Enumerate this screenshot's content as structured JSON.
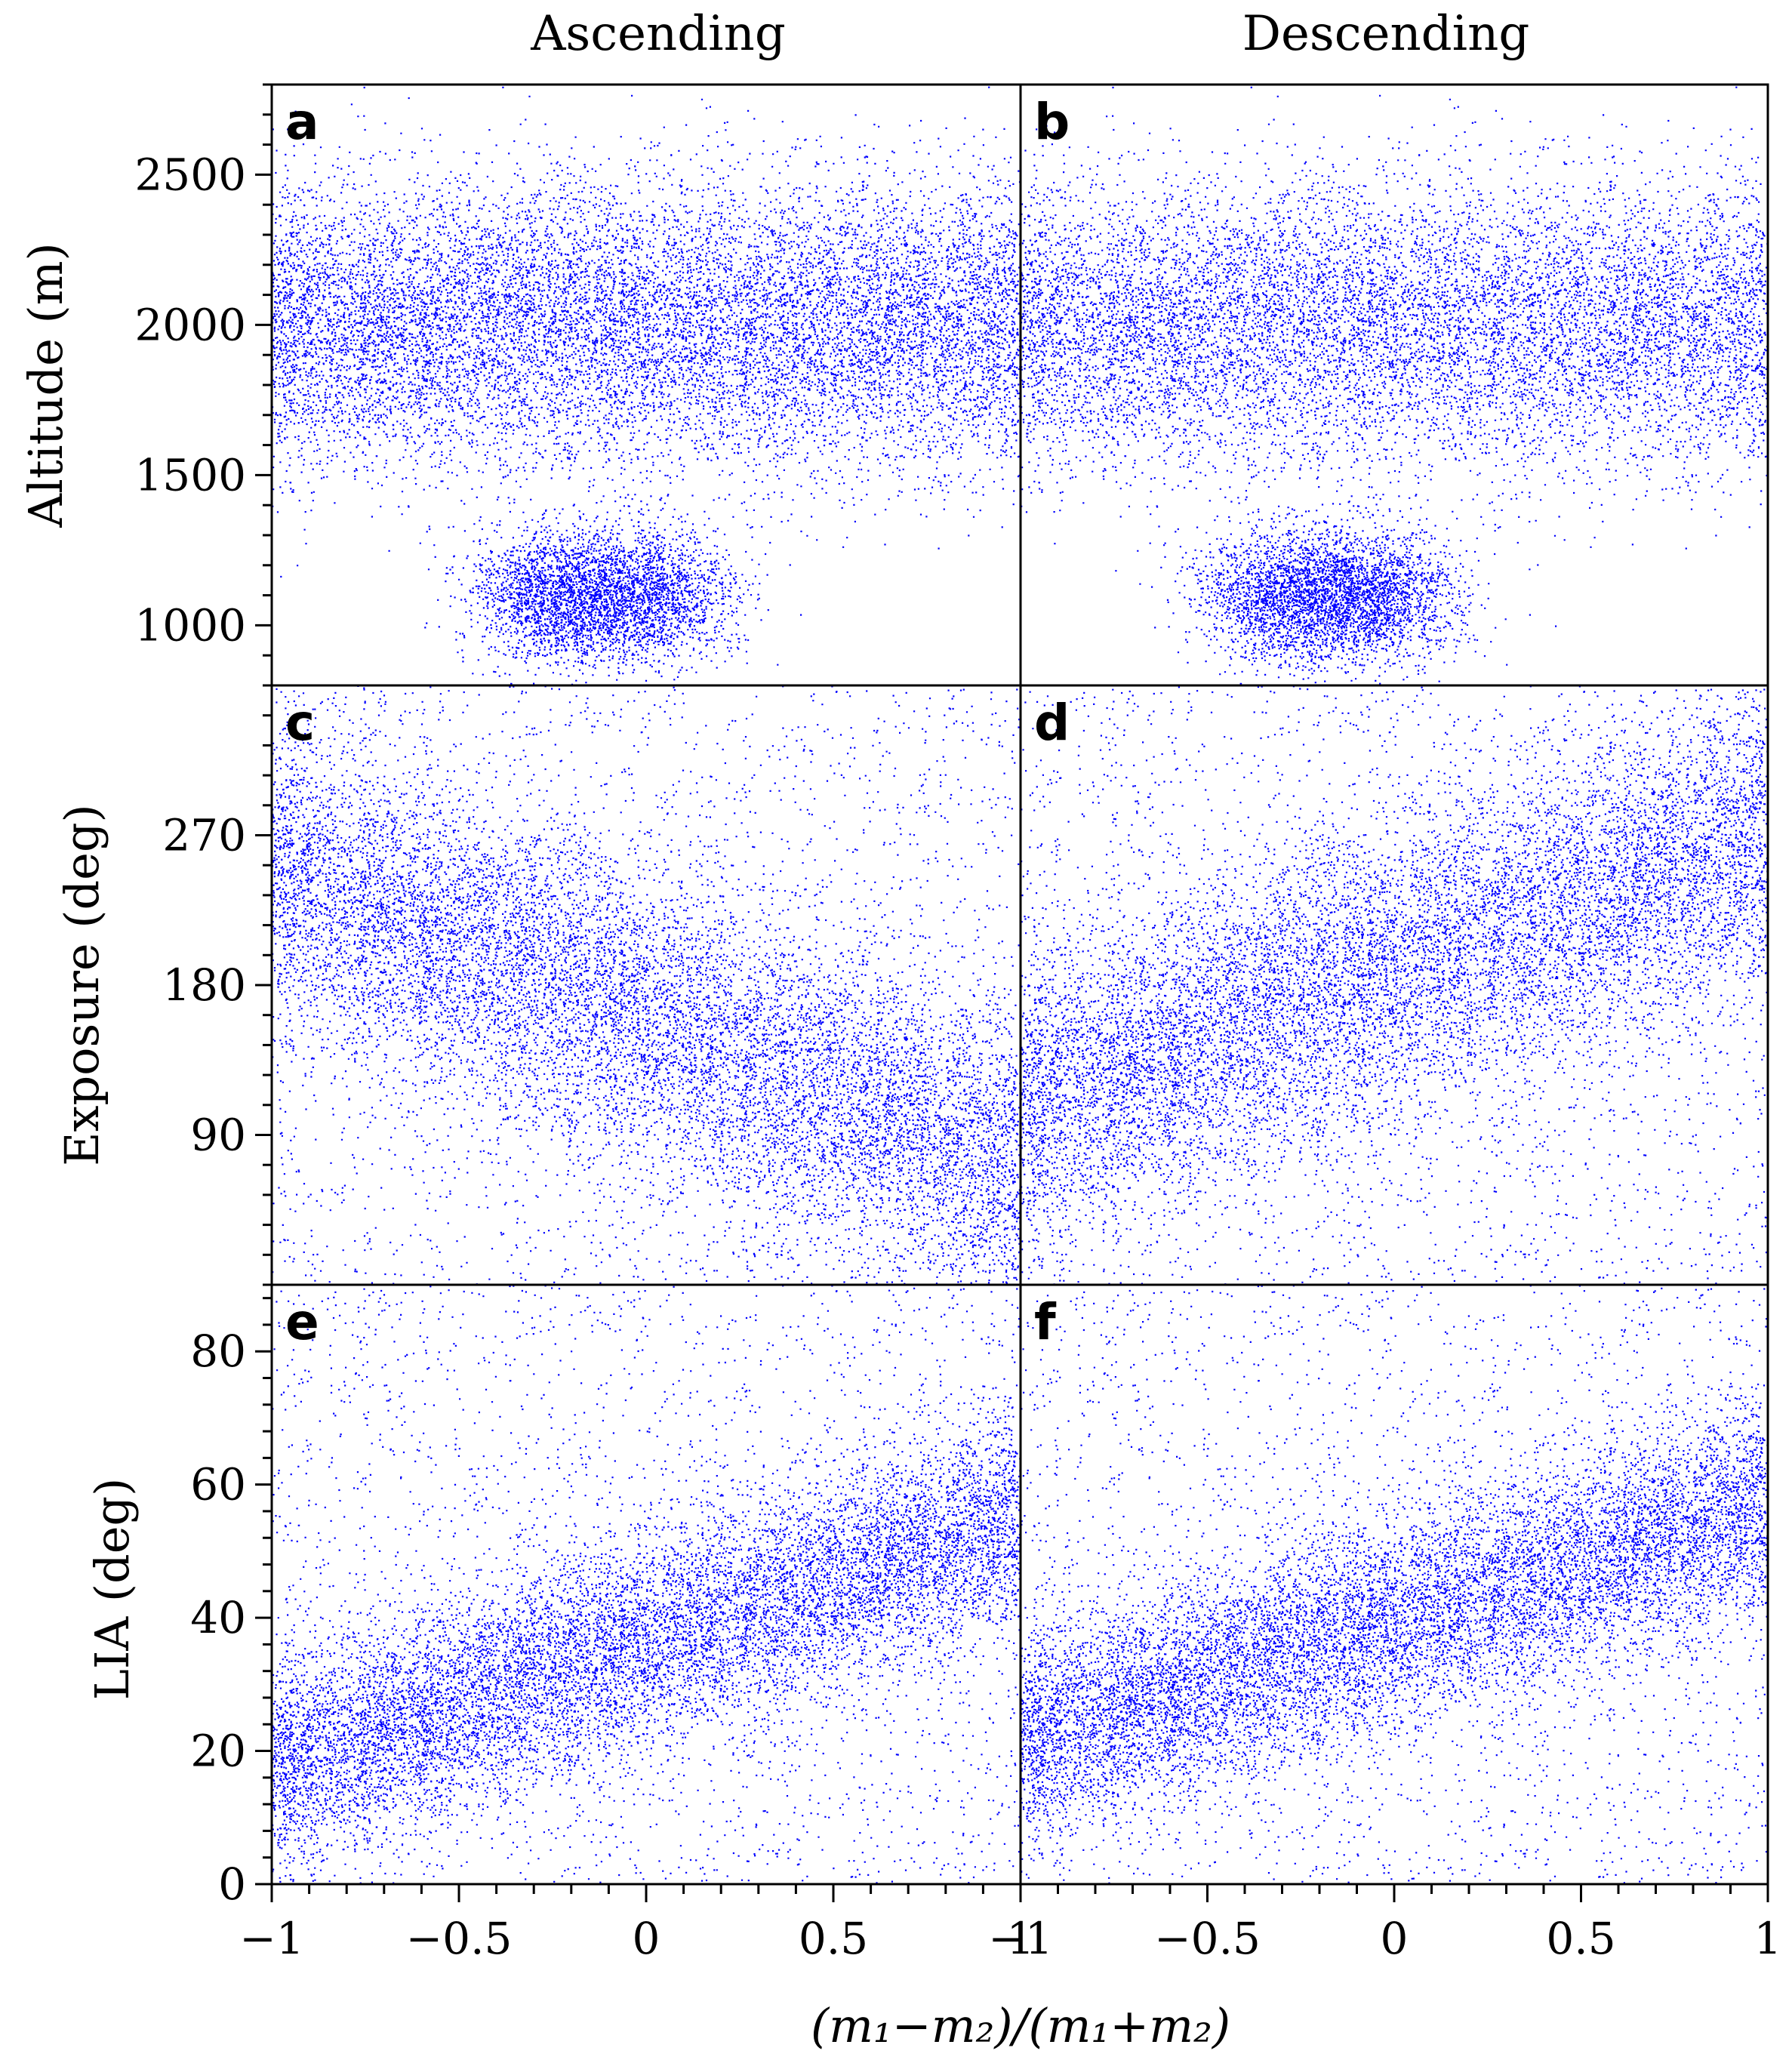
{
  "figure": {
    "column_titles": [
      "Ascending",
      "Descending"
    ],
    "shared_xlabel": "(m₁−m₂)/(m₁+m₂)",
    "point_color": "#0000ff"
  },
  "chart_data": [
    {
      "panel_label": "a",
      "type": "scatter",
      "column": "Ascending",
      "ylabel": "Altitude (m)",
      "xlim": [
        -1,
        1
      ],
      "ylim": [
        800,
        2800
      ],
      "yticks": [
        1000,
        1500,
        2000,
        2500
      ],
      "clusters": [
        {
          "x": [
            -1.0,
            1.0
          ],
          "y_center": 2000,
          "y_spread": 240,
          "density": "high"
        },
        {
          "x": [
            -0.35,
            0.1
          ],
          "y_center": 1100,
          "y_spread": 110,
          "density": "high"
        }
      ]
    },
    {
      "panel_label": "b",
      "type": "scatter",
      "column": "Descending",
      "ylabel": "Altitude (m)",
      "xlim": [
        -1,
        1
      ],
      "ylim": [
        800,
        2800
      ],
      "yticks": [
        1000,
        1500,
        2000,
        2500
      ],
      "clusters": [
        {
          "x": [
            -1.0,
            1.0
          ],
          "y_center": 2000,
          "y_spread": 240,
          "density": "high"
        },
        {
          "x": [
            -0.4,
            0.05
          ],
          "y_center": 1100,
          "y_spread": 110,
          "density": "high"
        }
      ]
    },
    {
      "panel_label": "c",
      "type": "scatter",
      "column": "Ascending",
      "ylabel": "Exposure (deg)",
      "xlim": [
        -1,
        1
      ],
      "ylim": [
        0,
        360
      ],
      "yticks": [
        90,
        180,
        270
      ],
      "trend": {
        "start": [
          -1.0,
          250
        ],
        "end": [
          1.0,
          70
        ],
        "spread": 45
      }
    },
    {
      "panel_label": "d",
      "type": "scatter",
      "column": "Descending",
      "ylabel": "Exposure (deg)",
      "xlim": [
        -1,
        1
      ],
      "ylim": [
        0,
        360
      ],
      "yticks": [
        90,
        180,
        270
      ],
      "trend": {
        "start": [
          -1.0,
          110
        ],
        "end": [
          1.0,
          270
        ],
        "spread": 45
      }
    },
    {
      "panel_label": "e",
      "type": "scatter",
      "column": "Ascending",
      "ylabel": "LIA (deg)",
      "xlim": [
        -1,
        1
      ],
      "ylim": [
        0,
        90
      ],
      "yticks": [
        0,
        20,
        40,
        60,
        80
      ],
      "trend": {
        "start": [
          -1.0,
          18
        ],
        "end": [
          1.0,
          55
        ],
        "spread": 8
      }
    },
    {
      "panel_label": "f",
      "type": "scatter",
      "column": "Descending",
      "ylabel": "LIA (deg)",
      "xlim": [
        -1,
        1
      ],
      "ylim": [
        0,
        90
      ],
      "yticks": [
        0,
        20,
        40,
        60,
        80
      ],
      "trend": {
        "start": [
          -1.0,
          22
        ],
        "end": [
          1.0,
          57
        ],
        "spread": 8
      }
    }
  ],
  "x_tick_labels": [
    "−1",
    "−0.5",
    "0",
    "0.5",
    "1"
  ],
  "x_tick_values": [
    -1,
    -0.5,
    0,
    0.5,
    1
  ]
}
